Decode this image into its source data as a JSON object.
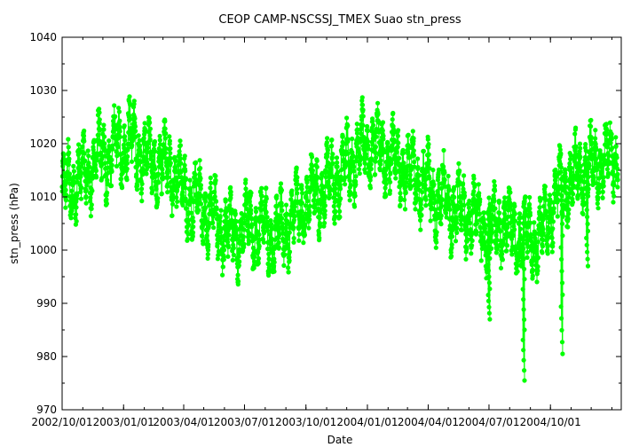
{
  "chart_data": {
    "type": "scatter",
    "title": "CEOP  CAMP-NSCSSJ_TMEX Suao  stn_press",
    "xlabel": "Date",
    "ylabel": "stn_press (hPa)",
    "xlim": [
      "2002-10-01",
      "2005-01-15"
    ],
    "ylim": [
      970,
      1040
    ],
    "x_ticks": [
      {
        "date": "2002-10-01",
        "label": "2002/10/01"
      },
      {
        "date": "2003-01-01",
        "label": "2003/01/01"
      },
      {
        "date": "2003-04-01",
        "label": "2003/04/01"
      },
      {
        "date": "2003-07-01",
        "label": "2003/07/01"
      },
      {
        "date": "2003-10-01",
        "label": "2003/10/01"
      },
      {
        "date": "2004-01-01",
        "label": "2004/01/01"
      },
      {
        "date": "2004-04-01",
        "label": "2004/04/01"
      },
      {
        "date": "2004-07-01",
        "label": "2004/07/01"
      },
      {
        "date": "2004-10-01",
        "label": "2004/10/01"
      }
    ],
    "y_ticks": [
      "970",
      "980",
      "990",
      "1000",
      "1010",
      "1020",
      "1030",
      "1040"
    ],
    "grid": false,
    "series": [
      {
        "color": "#00ff00",
        "points": [
          [
            "2002-10-01",
            1010
          ],
          [
            "2002-10-10",
            1012
          ],
          [
            "2002-10-20",
            1013
          ],
          [
            "2002-11-01",
            1014
          ],
          [
            "2002-11-10",
            1015
          ],
          [
            "2002-11-20",
            1017
          ],
          [
            "2002-12-01",
            1018
          ],
          [
            "2002-12-10",
            1017
          ],
          [
            "2002-12-20",
            1019
          ],
          [
            "2003-01-01",
            1020
          ],
          [
            "2003-01-10",
            1021
          ],
          [
            "2003-01-20",
            1019
          ],
          [
            "2003-02-01",
            1018
          ],
          [
            "2003-02-10",
            1017
          ],
          [
            "2003-02-20",
            1016
          ],
          [
            "2003-03-01",
            1015
          ],
          [
            "2003-03-10",
            1016
          ],
          [
            "2003-03-20",
            1014
          ],
          [
            "2003-04-01",
            1011
          ],
          [
            "2003-04-10",
            1010
          ],
          [
            "2003-04-20",
            1009
          ],
          [
            "2003-05-01",
            1008
          ],
          [
            "2003-05-10",
            1007
          ],
          [
            "2003-05-20",
            1005
          ],
          [
            "2003-06-01",
            1004
          ],
          [
            "2003-06-10",
            1003
          ],
          [
            "2003-06-20",
            1003
          ],
          [
            "2003-07-01",
            1004
          ],
          [
            "2003-07-10",
            1005
          ],
          [
            "2003-07-20",
            1004
          ],
          [
            "2003-08-01",
            1004
          ],
          [
            "2003-08-10",
            1003
          ],
          [
            "2003-08-20",
            1003
          ],
          [
            "2003-09-01",
            1004
          ],
          [
            "2003-09-10",
            1006
          ],
          [
            "2003-09-20",
            1007
          ],
          [
            "2003-10-01",
            1009
          ],
          [
            "2003-10-10",
            1010
          ],
          [
            "2003-10-20",
            1011
          ],
          [
            "2003-11-01",
            1012
          ],
          [
            "2003-11-10",
            1013
          ],
          [
            "2003-11-20",
            1014
          ],
          [
            "2003-12-01",
            1016
          ],
          [
            "2003-12-10",
            1017
          ],
          [
            "2003-12-20",
            1019
          ],
          [
            "2004-01-01",
            1019
          ],
          [
            "2004-01-10",
            1020
          ],
          [
            "2004-01-20",
            1019
          ],
          [
            "2004-02-01",
            1018
          ],
          [
            "2004-02-10",
            1017
          ],
          [
            "2004-02-20",
            1016
          ],
          [
            "2004-03-01",
            1015
          ],
          [
            "2004-03-10",
            1014
          ],
          [
            "2004-03-20",
            1013
          ],
          [
            "2004-04-01",
            1012
          ],
          [
            "2004-04-10",
            1010
          ],
          [
            "2004-04-20",
            1010
          ],
          [
            "2004-05-01",
            1008
          ],
          [
            "2004-05-10",
            1008
          ],
          [
            "2004-05-20",
            1007
          ],
          [
            "2004-06-01",
            1006
          ],
          [
            "2004-06-10",
            1006
          ],
          [
            "2004-06-20",
            1005
          ],
          [
            "2004-07-01",
            1003
          ],
          [
            "2004-07-10",
            1004
          ],
          [
            "2004-07-20",
            1005
          ],
          [
            "2004-08-01",
            1004
          ],
          [
            "2004-08-10",
            1003
          ],
          [
            "2004-08-20",
            1002
          ],
          [
            "2004-09-01",
            1003
          ],
          [
            "2004-09-10",
            1002
          ],
          [
            "2004-09-20",
            1003
          ],
          [
            "2004-10-01",
            1008
          ],
          [
            "2004-10-10",
            1010
          ],
          [
            "2004-10-20",
            1012
          ],
          [
            "2004-11-01",
            1013
          ],
          [
            "2004-11-10",
            1014
          ],
          [
            "2004-11-20",
            1015
          ],
          [
            "2004-12-01",
            1016
          ],
          [
            "2004-12-10",
            1016
          ],
          [
            "2004-12-20",
            1017
          ],
          [
            "2005-01-01",
            1017
          ],
          [
            "2005-01-10",
            1018
          ]
        ],
        "dips": [
          {
            "date": "2004-07-01",
            "min": 987
          },
          {
            "date": "2004-08-22",
            "min": 975.5
          },
          {
            "date": "2004-10-18",
            "min": 980.5
          },
          {
            "date": "2004-11-25",
            "min": 997
          }
        ]
      }
    ]
  }
}
